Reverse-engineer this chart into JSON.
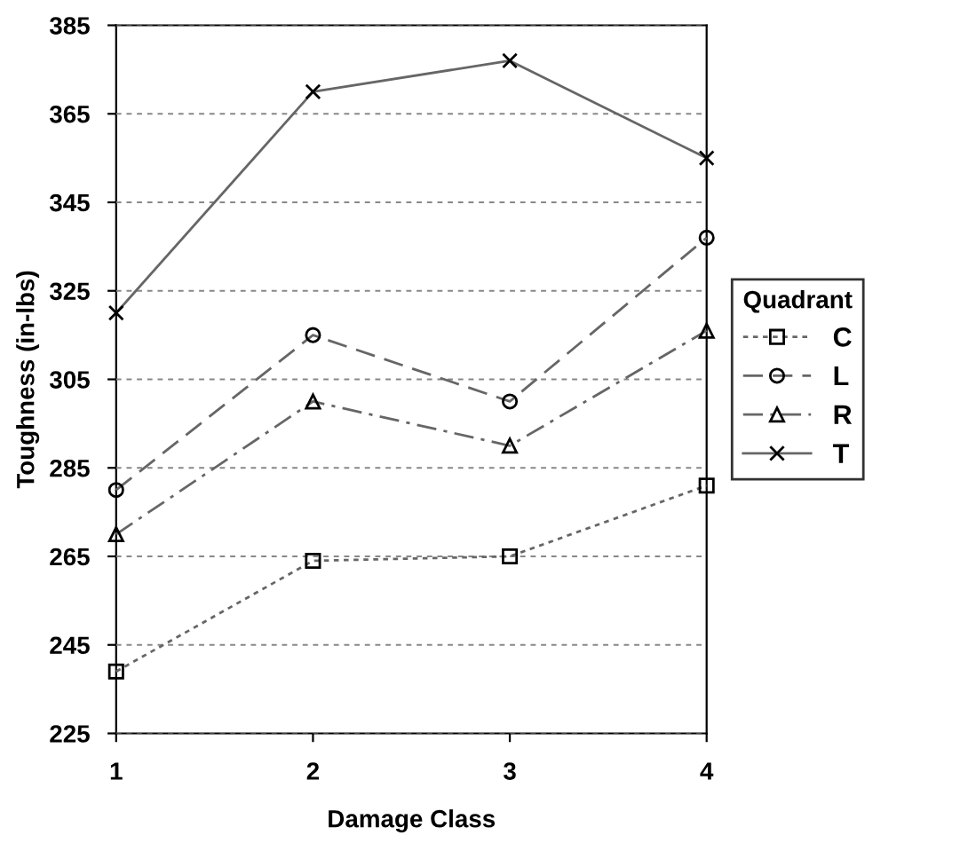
{
  "chart_data": {
    "type": "line",
    "xlabel": "Damage Class",
    "ylabel": "Toughness (in-lbs)",
    "legend_title": "Quadrant",
    "x": [
      1,
      2,
      3,
      4
    ],
    "xlim": [
      1,
      4
    ],
    "xticks": [
      1,
      2,
      3,
      4
    ],
    "ylim": [
      225,
      385
    ],
    "yticks": [
      225,
      245,
      265,
      285,
      305,
      325,
      345,
      365,
      385
    ],
    "grid": "y",
    "legend": "right",
    "series": [
      {
        "name": "C",
        "color": "#666666",
        "marker": "square",
        "line_style": "dotted",
        "values": [
          239,
          264,
          265,
          281
        ]
      },
      {
        "name": "L",
        "color": "#666666",
        "marker": "circle",
        "line_style": "dashed",
        "values": [
          280,
          315,
          300,
          337
        ]
      },
      {
        "name": "R",
        "color": "#666666",
        "marker": "triangle",
        "line_style": "dashdot",
        "values": [
          270,
          300,
          290,
          316
        ]
      },
      {
        "name": "T",
        "color": "#666666",
        "marker": "cross",
        "line_style": "solid",
        "values": [
          320,
          370,
          377,
          355
        ]
      }
    ]
  }
}
